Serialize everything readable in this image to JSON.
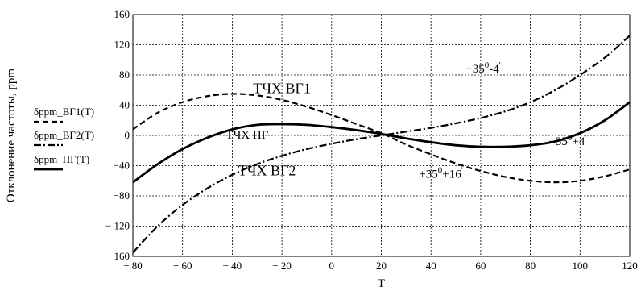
{
  "chart_data": {
    "type": "line",
    "xlabel": "T",
    "ylabel": "Отклонение частоты, ppm",
    "xlim": [
      -80,
      120
    ],
    "ylim": [
      -160,
      160
    ],
    "xticks": [
      -80,
      -60,
      -40,
      -20,
      0,
      20,
      40,
      60,
      80,
      100,
      120
    ],
    "yticks": [
      160,
      120,
      80,
      40,
      0,
      -40,
      -80,
      -120,
      -160
    ],
    "xtick_labels": [
      "− 80",
      "− 60",
      "− 40",
      "− 20",
      "0",
      "20",
      "40",
      "60",
      "80",
      "100",
      "120"
    ],
    "ytick_labels": [
      "160",
      "120",
      "80",
      "40",
      "0",
      "−40",
      "−80",
      "− 120",
      "− 160"
    ],
    "grid": true,
    "legend_position": "left",
    "series": [
      {
        "name": "δppm_ВГ1(T)",
        "style": "dashed",
        "x": [
          -80,
          -70,
          -60,
          -50,
          -40,
          -30,
          -20,
          -10,
          0,
          10,
          20,
          30,
          40,
          50,
          60,
          70,
          80,
          90,
          100,
          110,
          120
        ],
        "y": [
          8,
          30,
          44,
          52,
          55,
          53,
          47,
          38,
          27,
          15,
          3,
          -12,
          -25,
          -37,
          -47,
          -55,
          -60,
          -62,
          -60,
          -54,
          -45
        ]
      },
      {
        "name": "δppm_ВГ2(T)",
        "style": "dash-dot",
        "x": [
          -80,
          -70,
          -60,
          -50,
          -40,
          -30,
          -20,
          -10,
          0,
          10,
          20,
          30,
          40,
          50,
          60,
          70,
          80,
          90,
          100,
          110,
          120
        ],
        "y": [
          -155,
          -120,
          -92,
          -70,
          -52,
          -38,
          -27,
          -18,
          -11,
          -5,
          0,
          5,
          10,
          16,
          23,
          32,
          44,
          60,
          80,
          103,
          132
        ]
      },
      {
        "name": "δppm_ПГ(T)",
        "style": "solid",
        "x": [
          -80,
          -70,
          -60,
          -50,
          -40,
          -30,
          -20,
          -10,
          0,
          10,
          20,
          30,
          40,
          50,
          60,
          70,
          80,
          90,
          100,
          110,
          120
        ],
        "y": [
          -62,
          -38,
          -18,
          -3,
          8,
          14,
          15,
          14,
          11,
          7,
          2,
          -4,
          -9,
          -13,
          -15,
          -15,
          -13,
          -8,
          3,
          20,
          44
        ]
      }
    ],
    "annotations": [
      {
        "text": "ТЧХ ВГ1",
        "x": -20,
        "y": 56,
        "size": "big"
      },
      {
        "text": "ТЧХ ПГ",
        "x": -34,
        "y": -4,
        "size": "ann"
      },
      {
        "text": "ТЧХ ВГ2",
        "x": -26,
        "y": -53,
        "size": "big"
      }
    ],
    "angle_annotations": [
      {
        "base": "+35",
        "sup1": "0",
        "mid": "-4",
        "sup2": "'",
        "x": 61,
        "y": 83
      },
      {
        "base": "+35",
        "sup1": "0",
        "mid": "+4",
        "sup2": "'",
        "x": 95,
        "y": -13
      },
      {
        "base": "+35",
        "sup1": "0",
        "mid": "+16",
        "sup2": "'",
        "x": 44,
        "y": -56
      }
    ]
  }
}
